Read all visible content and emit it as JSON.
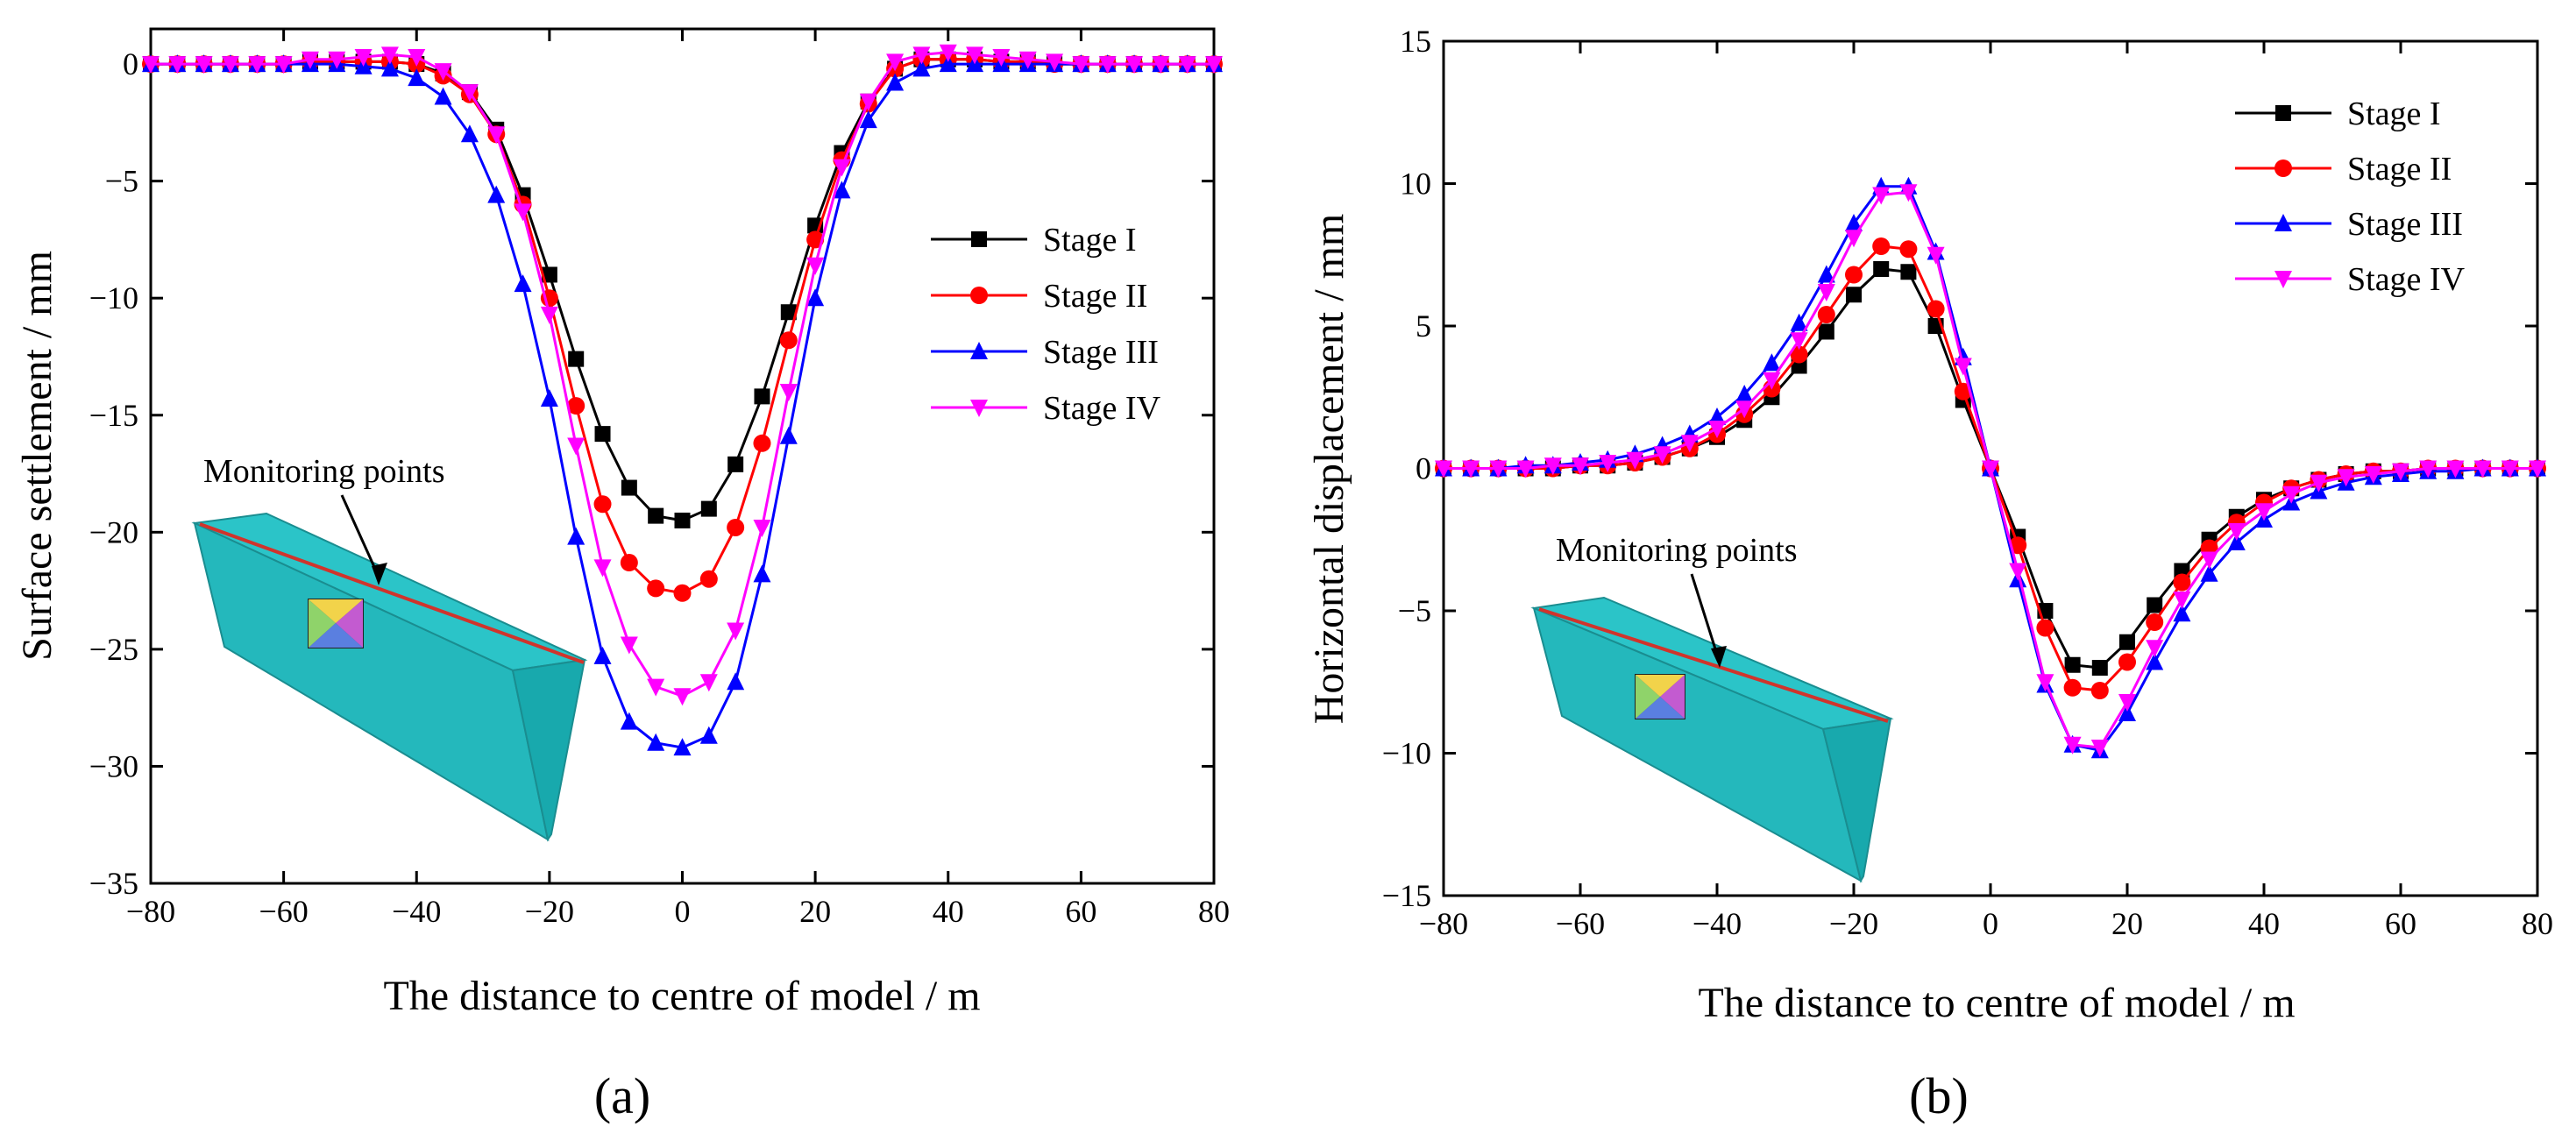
{
  "figure": {
    "panel_a_label": "(a)",
    "panel_b_label": "(b)",
    "legend_order": [
      "Stage I",
      "Stage II",
      "Stage III",
      "Stage IV"
    ]
  },
  "chart_data": [
    {
      "id": "a",
      "type": "line",
      "title": "",
      "xlabel": "The distance to centre of model / m",
      "ylabel": "Surface settlement / mm",
      "xlim": [
        -80,
        80
      ],
      "ylim": [
        -35,
        1.5
      ],
      "xticks": [
        -80,
        -60,
        -40,
        -20,
        0,
        20,
        40,
        60,
        80
      ],
      "yticks": [
        0,
        -5,
        -10,
        -15,
        -20,
        -25,
        -30,
        -35
      ],
      "legend_position": "right",
      "annotation": "Monitoring points",
      "x": [
        -80,
        -76,
        -72,
        -68,
        -64,
        -60,
        -56,
        -52,
        -48,
        -44,
        -40,
        -36,
        -32,
        -28,
        -24,
        -20,
        -16,
        -12,
        -8,
        -4,
        0,
        4,
        8,
        12,
        16,
        20,
        24,
        28,
        32,
        36,
        40,
        44,
        48,
        52,
        56,
        60,
        64,
        68,
        72,
        76,
        80
      ],
      "series": [
        {
          "name": "Stage I",
          "color": "#000000",
          "marker": "square",
          "values": [
            0,
            0,
            0,
            0,
            0,
            0,
            0.1,
            0.1,
            0.1,
            0.1,
            0,
            -0.4,
            -1.2,
            -2.8,
            -5.6,
            -9.0,
            -12.6,
            -15.8,
            -18.1,
            -19.3,
            -19.5,
            -19.0,
            -17.1,
            -14.2,
            -10.6,
            -6.9,
            -3.8,
            -1.6,
            -0.2,
            0.2,
            0.2,
            0.2,
            0.1,
            0.1,
            0,
            0,
            0,
            0,
            0,
            0,
            0
          ]
        },
        {
          "name": "Stage II",
          "color": "#ff0000",
          "marker": "circle",
          "values": [
            0,
            0,
            0,
            0,
            0,
            0,
            0.1,
            0.1,
            0.1,
            0.1,
            0,
            -0.5,
            -1.3,
            -3.0,
            -6.0,
            -10.0,
            -14.6,
            -18.8,
            -21.3,
            -22.4,
            -22.6,
            -22.0,
            -19.8,
            -16.2,
            -11.8,
            -7.5,
            -4.1,
            -1.7,
            -0.2,
            0.2,
            0.2,
            0.2,
            0.1,
            0.1,
            0,
            0,
            0,
            0,
            0,
            0,
            0
          ]
        },
        {
          "name": "Stage III",
          "color": "#0000ff",
          "marker": "triangle-up",
          "values": [
            0,
            0,
            0,
            0,
            0,
            0,
            0,
            0,
            -0.1,
            -0.2,
            -0.6,
            -1.4,
            -3.0,
            -5.6,
            -9.4,
            -14.3,
            -20.2,
            -25.3,
            -28.1,
            -29.0,
            -29.2,
            -28.7,
            -26.4,
            -21.8,
            -15.9,
            -10.0,
            -5.4,
            -2.4,
            -0.8,
            -0.2,
            0,
            0,
            0,
            0,
            0,
            0,
            0,
            0,
            0,
            0,
            0
          ]
        },
        {
          "name": "Stage IV",
          "color": "#ff00ff",
          "marker": "triangle-down",
          "values": [
            0,
            0,
            0,
            0,
            0,
            0,
            0.2,
            0.2,
            0.3,
            0.4,
            0.3,
            -0.3,
            -1.2,
            -3.0,
            -6.3,
            -10.7,
            -16.3,
            -21.5,
            -24.8,
            -26.6,
            -27.0,
            -26.4,
            -24.2,
            -19.8,
            -14.0,
            -8.6,
            -4.4,
            -1.6,
            0.1,
            0.4,
            0.5,
            0.4,
            0.3,
            0.2,
            0.1,
            0,
            0,
            0,
            0,
            0,
            0
          ]
        }
      ]
    },
    {
      "id": "b",
      "type": "line",
      "title": "",
      "xlabel": "The distance to centre of model / m",
      "ylabel": "Horizontal displacement / mm",
      "xlim": [
        -80,
        80
      ],
      "ylim": [
        -15,
        15
      ],
      "xticks": [
        -80,
        -60,
        -40,
        -20,
        0,
        20,
        40,
        60,
        80
      ],
      "yticks": [
        15,
        10,
        5,
        0,
        -5,
        -10,
        -15
      ],
      "legend_position": "top-right",
      "annotation": "Monitoring points",
      "x": [
        -80,
        -76,
        -72,
        -68,
        -64,
        -60,
        -56,
        -52,
        -48,
        -44,
        -40,
        -36,
        -32,
        -28,
        -24,
        -20,
        -16,
        -12,
        -8,
        -4,
        0,
        4,
        8,
        12,
        16,
        20,
        24,
        28,
        32,
        36,
        40,
        44,
        48,
        52,
        56,
        60,
        64,
        68,
        72,
        76,
        80
      ],
      "series": [
        {
          "name": "Stage I",
          "color": "#000000",
          "marker": "square",
          "values": [
            0,
            0,
            0,
            0,
            0,
            0.1,
            0.1,
            0.2,
            0.4,
            0.7,
            1.1,
            1.7,
            2.5,
            3.6,
            4.8,
            6.1,
            7.0,
            6.9,
            5.0,
            2.4,
            0,
            -2.4,
            -5.0,
            -6.9,
            -7.0,
            -6.1,
            -4.8,
            -3.6,
            -2.5,
            -1.7,
            -1.1,
            -0.7,
            -0.4,
            -0.2,
            -0.1,
            -0.1,
            0,
            0,
            0,
            0,
            0
          ]
        },
        {
          "name": "Stage II",
          "color": "#ff0000",
          "marker": "circle",
          "values": [
            0,
            0,
            0,
            0,
            0,
            0.1,
            0.1,
            0.2,
            0.4,
            0.7,
            1.2,
            1.9,
            2.8,
            4.0,
            5.4,
            6.8,
            7.8,
            7.7,
            5.6,
            2.7,
            0,
            -2.7,
            -5.6,
            -7.7,
            -7.8,
            -6.8,
            -5.4,
            -4.0,
            -2.8,
            -1.9,
            -1.2,
            -0.7,
            -0.4,
            -0.2,
            -0.1,
            -0.1,
            0,
            0,
            0,
            0,
            0
          ]
        },
        {
          "name": "Stage III",
          "color": "#0000ff",
          "marker": "triangle-up",
          "values": [
            0,
            0,
            0,
            0.1,
            0.1,
            0.2,
            0.3,
            0.5,
            0.8,
            1.2,
            1.8,
            2.6,
            3.7,
            5.1,
            6.8,
            8.6,
            9.9,
            9.9,
            7.6,
            3.9,
            0,
            -3.9,
            -7.6,
            -9.7,
            -9.9,
            -8.6,
            -6.8,
            -5.1,
            -3.7,
            -2.6,
            -1.8,
            -1.2,
            -0.8,
            -0.5,
            -0.3,
            -0.2,
            -0.1,
            -0.1,
            0,
            0,
            0
          ]
        },
        {
          "name": "Stage IV",
          "color": "#ff00ff",
          "marker": "triangle-down",
          "values": [
            0,
            0,
            0,
            0,
            0.1,
            0.1,
            0.2,
            0.3,
            0.5,
            0.9,
            1.4,
            2.1,
            3.1,
            4.5,
            6.2,
            8.1,
            9.6,
            9.7,
            7.5,
            3.6,
            0,
            -3.6,
            -7.5,
            -9.7,
            -9.8,
            -8.2,
            -6.3,
            -4.6,
            -3.2,
            -2.2,
            -1.5,
            -0.9,
            -0.5,
            -0.3,
            -0.2,
            -0.1,
            0,
            0,
            0,
            0,
            0
          ]
        }
      ]
    }
  ]
}
